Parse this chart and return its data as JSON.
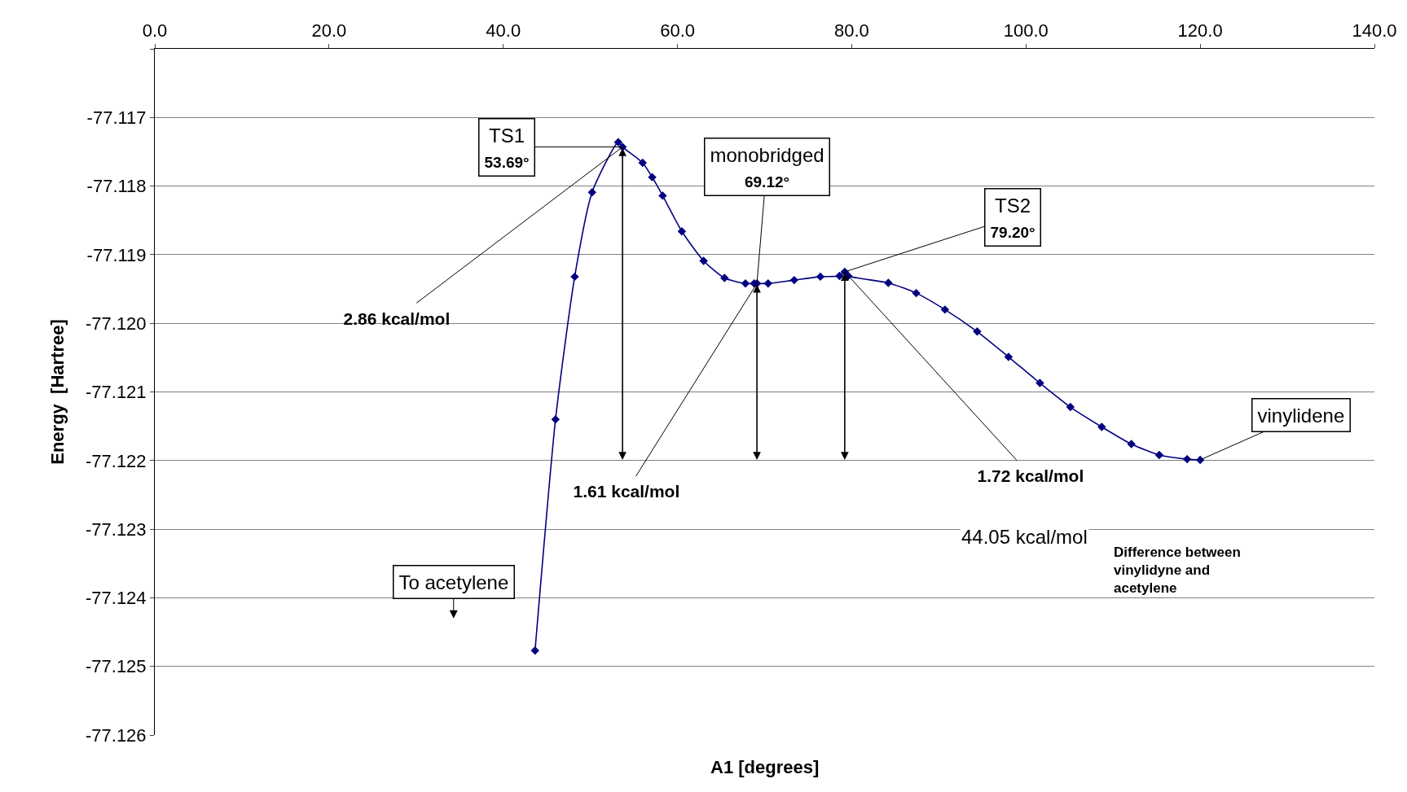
{
  "chart_data": {
    "type": "line",
    "xlabel": "A1 [degrees]",
    "ylabel": "Energy  [Hartree]",
    "x": [
      43.65,
      46.0,
      48.2,
      50.2,
      53.2,
      53.69,
      56.0,
      57.1,
      58.3,
      60.5,
      63.0,
      65.4,
      67.8,
      68.8,
      69.12,
      70.4,
      73.4,
      76.4,
      78.6,
      79.2,
      79.6,
      84.2,
      87.4,
      90.7,
      94.4,
      98.0,
      101.6,
      105.1,
      108.7,
      112.1,
      115.3,
      118.5,
      120.0
    ],
    "series": [
      {
        "color": "#000080",
        "values": [
          -77.12477,
          -77.1214,
          -77.11932,
          -77.11809,
          -77.11736,
          -77.11743,
          -77.11766,
          -77.11787,
          -77.11814,
          -77.11866,
          -77.11909,
          -77.11934,
          -77.11942,
          -77.11942,
          -77.11942,
          -77.11942,
          -77.11937,
          -77.11932,
          -77.11931,
          -77.11925,
          -77.11931,
          -77.11941,
          -77.11956,
          -77.1198,
          -77.12012,
          -77.12049,
          -77.12087,
          -77.12122,
          -77.12151,
          -77.12176,
          -77.12192,
          -77.12198,
          -77.12199
        ]
      }
    ],
    "xlim": [
      0,
      140
    ],
    "xticks": [
      {
        "value": 0,
        "label": "0.0"
      },
      {
        "value": 20,
        "label": "20.0"
      },
      {
        "value": 40,
        "label": "40.0"
      },
      {
        "value": 60,
        "label": "60.0"
      },
      {
        "value": 80,
        "label": "80.0"
      },
      {
        "value": 100,
        "label": "100.0"
      },
      {
        "value": 120,
        "label": "120.0"
      },
      {
        "value": 140,
        "label": "140.0"
      }
    ],
    "ylim": [
      -77.126,
      -77.116
    ],
    "yticks": [
      {
        "value": -77.116,
        "label": null
      },
      -77.117,
      -77.118,
      -77.119,
      {
        "value": -77.12,
        "label": "-77.120"
      },
      -77.121,
      -77.122,
      -77.123,
      -77.124,
      -77.125,
      -77.126
    ],
    "grid": "y",
    "marker": "diamond",
    "annotations": [
      {
        "text": "TS1\n53.69°",
        "x": 53.69,
        "y": -77.11743
      },
      {
        "text": "monobridged\n69.12°",
        "x": 69.12,
        "y": -77.11942
      },
      {
        "text": "TS2\n79.20°",
        "x": 79.2,
        "y": -77.11925
      },
      {
        "text": "vinylidene",
        "x": 120.0,
        "y": -77.12199
      },
      {
        "text": "2.86 kcal/mol",
        "x": 53.69,
        "y": -77.11743
      },
      {
        "text": "1.61 kcal/mol",
        "x": 69.12,
        "y": -77.11942
      },
      {
        "text": "1.72 kcal/mol",
        "x": 79.2,
        "y": -77.11925
      },
      "44.05 kcal/mol",
      "Difference between\nvinylidyne and\nacetylene",
      "To acetylene"
    ]
  }
}
